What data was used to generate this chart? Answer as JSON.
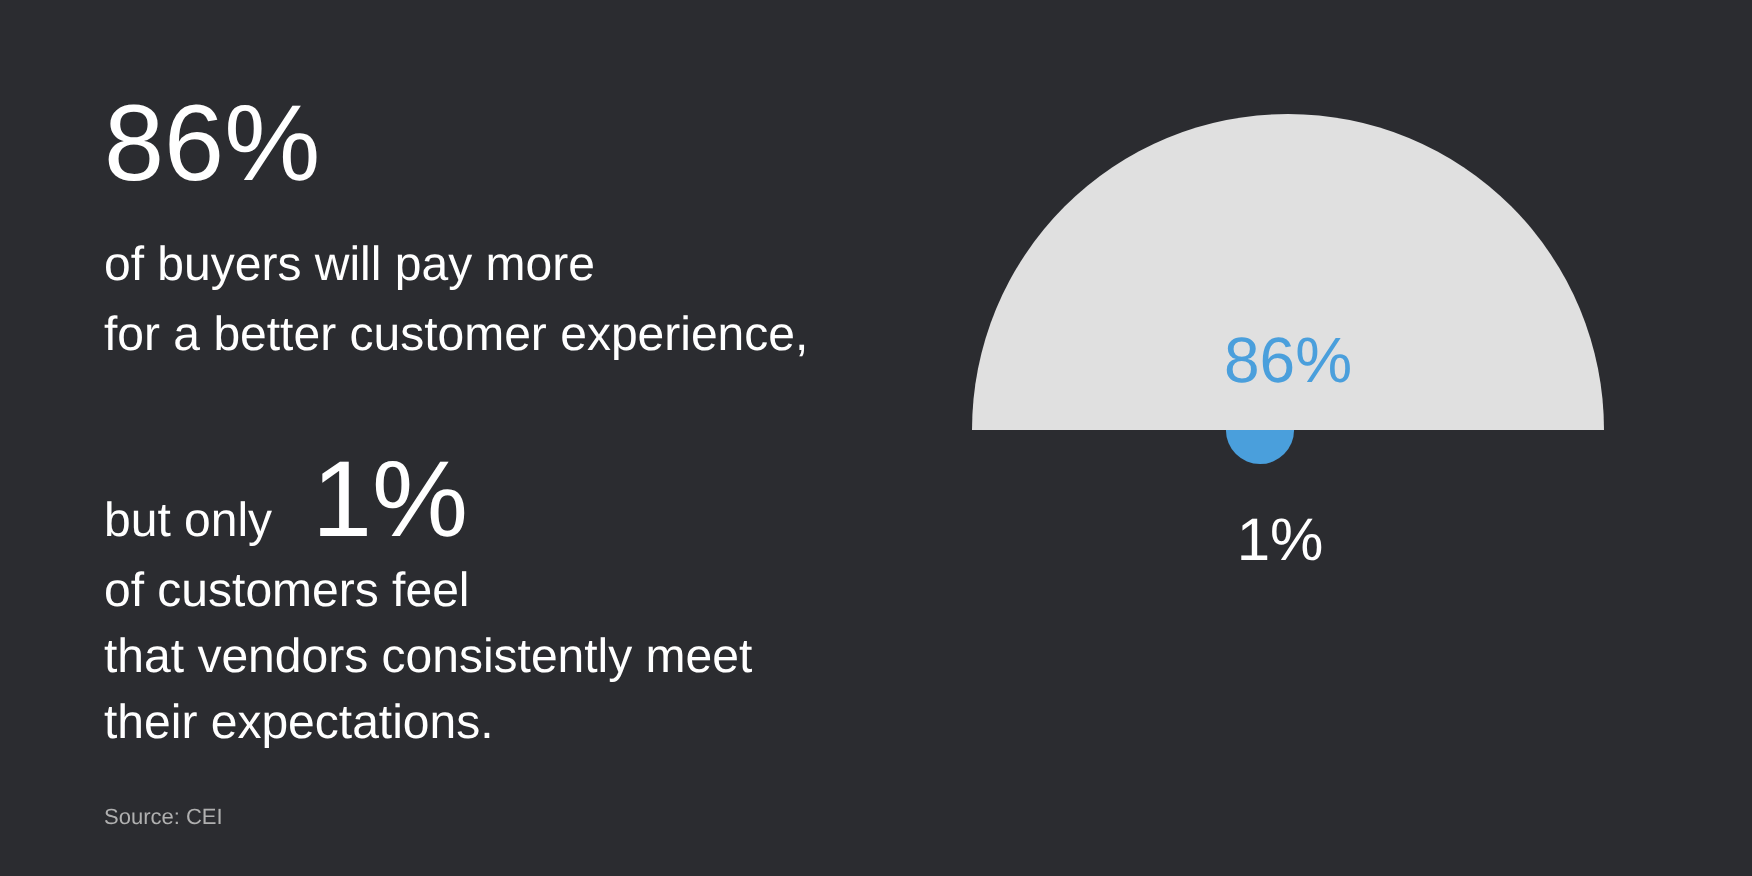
{
  "chart_data": {
    "type": "other",
    "values": [
      86,
      1
    ],
    "value_labels": [
      "86%",
      "1%"
    ],
    "colors": [
      "#e0e0e0",
      "#4a9fdc"
    ],
    "annotations": [
      "86%",
      "of buyers will pay more\nfor a better customer experience,",
      "but only",
      "1%",
      "of customers feel\nthat vendors consistently meet\ntheir expectations.",
      "Source: CEI"
    ]
  }
}
